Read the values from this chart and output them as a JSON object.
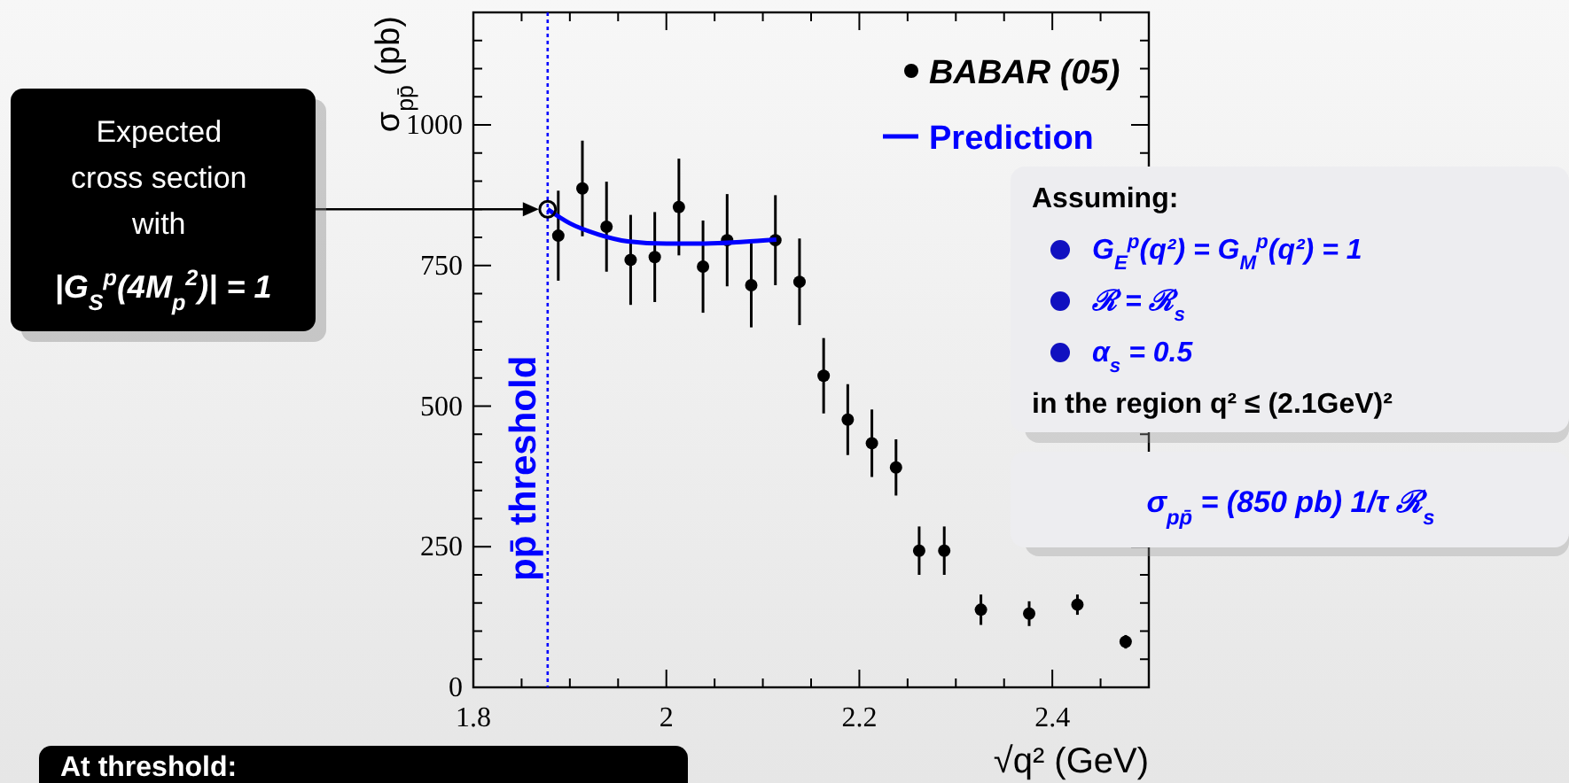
{
  "chart_data": {
    "type": "scatter",
    "xlabel": "√q² (GeV)",
    "ylabel": "σ$_{pp̄}$ (pb)",
    "xlim": [
      1.8,
      2.5
    ],
    "ylim": [
      0,
      1200
    ],
    "xticks": [
      {
        "value": 1.8,
        "label": "1.8"
      },
      {
        "value": 1.85,
        "label": null
      },
      {
        "value": 1.9,
        "label": null
      },
      {
        "value": 1.95,
        "label": null
      },
      {
        "value": 2,
        "label": "2"
      },
      {
        "value": 2.05,
        "label": null
      },
      {
        "value": 2.1,
        "label": null
      },
      {
        "value": 2.15,
        "label": null
      },
      {
        "value": 2.2,
        "label": "2.2"
      },
      {
        "value": 2.25,
        "label": null
      },
      {
        "value": 2.3,
        "label": null
      },
      {
        "value": 2.35,
        "label": null
      },
      {
        "value": 2.4,
        "label": "2.4"
      },
      {
        "value": 2.45,
        "label": null
      }
    ],
    "yticks": [
      0,
      {
        "value": 50,
        "label": null
      },
      {
        "value": 100,
        "label": null
      },
      {
        "value": 150,
        "label": null
      },
      {
        "value": 200,
        "label": null
      },
      250,
      {
        "value": 300,
        "label": null
      },
      {
        "value": 350,
        "label": null
      },
      {
        "value": 400,
        "label": null
      },
      {
        "value": 450,
        "label": null
      },
      500,
      {
        "value": 550,
        "label": null
      },
      {
        "value": 600,
        "label": null
      },
      {
        "value": 650,
        "label": null
      },
      {
        "value": 700,
        "label": null
      },
      750,
      {
        "value": 800,
        "label": null
      },
      {
        "value": 850,
        "label": null
      },
      {
        "value": 900,
        "label": null
      },
      {
        "value": 950,
        "label": null
      },
      1000,
      {
        "value": 1050,
        "label": null
      },
      {
        "value": 1100,
        "label": null
      },
      {
        "value": 1150,
        "label": null
      }
    ],
    "grid": false,
    "legend": "top right",
    "series": [
      {
        "name": "BABAR (05)",
        "marker": "circle",
        "color": "#000000",
        "x": [
          1.888,
          1.913,
          1.938,
          1.963,
          1.988,
          2.013,
          2.038,
          2.063,
          2.088,
          2.113,
          2.138,
          2.163,
          2.188,
          2.213,
          2.238,
          2.262,
          2.288,
          2.326,
          2.376,
          2.426,
          2.476
        ],
        "values": [
          803,
          887,
          819,
          760,
          765,
          854,
          748,
          795,
          715,
          795,
          721,
          554,
          476,
          434,
          391,
          243,
          243,
          138,
          131,
          147,
          81
        ],
        "errors": [
          80,
          85,
          80,
          80,
          80,
          86,
          82,
          82,
          75,
          80,
          77,
          67,
          63,
          60,
          50,
          43,
          43,
          27,
          22,
          18,
          12
        ]
      },
      {
        "name": "Prediction",
        "type": "line",
        "marker": "none",
        "line_style": "solid",
        "color": "#0000ff",
        "x": [
          1.877,
          1.9,
          1.93,
          1.96,
          2.0,
          2.04,
          2.08,
          2.114
        ],
        "values": [
          850,
          825,
          805,
          793,
          789,
          789,
          792,
          796
        ]
      }
    ],
    "ref_lines": [
      {
        "axis": "x",
        "value": 1.877,
        "label": "pp̄ threshold",
        "color": "#0000ff",
        "line_style": "dotted"
      }
    ],
    "annotations": [
      "Expected cross section with |G$_{S}$$^{p}$(4M$_{p}$$^{2}$)| = 1",
      "Assuming:",
      "G$_{E}$$^{p}$(q²) = G$_{M}$$^{p}$(q²) = 1",
      "ℛ = ℛ$_{s}$",
      "α$_{s}$ = 0.5",
      "in the region q² ≤ (2.1GeV)²",
      "σ$_{pp̄}$ = (850 pb) 1/τ ℛ$_{s}$",
      "At threshold:"
    ]
  }
}
